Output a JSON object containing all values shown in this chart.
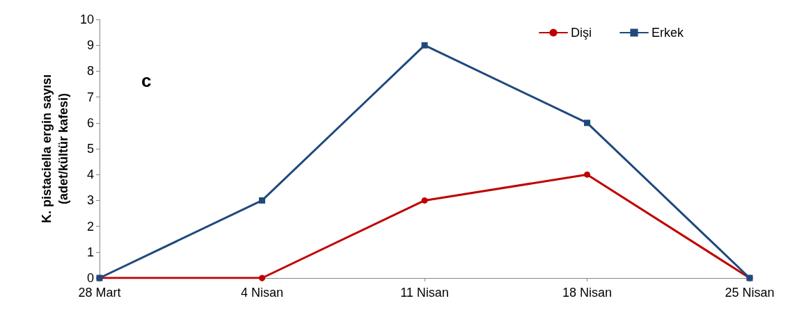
{
  "chart_data": {
    "type": "line",
    "ylabel": "K. pistaciella ergin sayısı\n(adet/kültür kafesi)",
    "categories": [
      "28 Mart",
      "4 Nisan",
      "11 Nisan",
      "18 Nisan",
      "25 Nisan"
    ],
    "series": [
      {
        "name": "Dişi",
        "color": "#c00000",
        "marker": "circle",
        "values": [
          0,
          0,
          3,
          4,
          0
        ]
      },
      {
        "name": "Erkek",
        "color": "#1f497d",
        "marker": "square",
        "values": [
          0,
          3,
          9,
          6,
          0
        ]
      }
    ],
    "ylim": [
      0,
      10
    ],
    "yticks": [
      0,
      1,
      2,
      3,
      4,
      5,
      6,
      7,
      8,
      9,
      10
    ],
    "grid": false,
    "legend": "top right",
    "annotations": [
      "c"
    ]
  }
}
